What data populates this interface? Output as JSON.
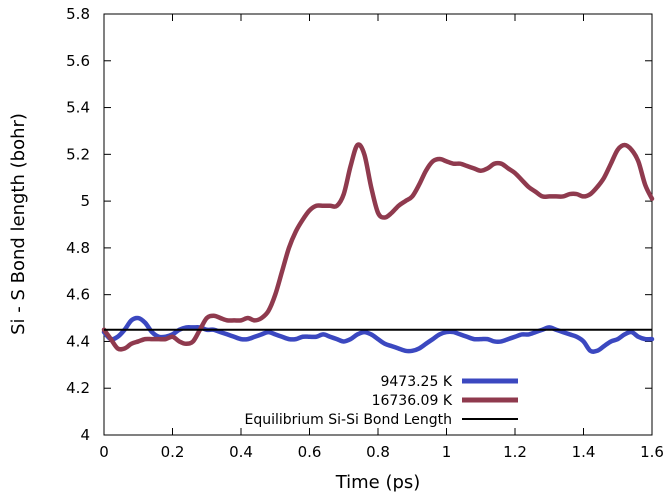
{
  "chart_data": {
    "type": "line",
    "xlabel": "Time (ps)",
    "ylabel": "Si - S Bond length (bohr)",
    "xlim": [
      0,
      1.6
    ],
    "ylim": [
      4,
      5.8
    ],
    "xticks": [
      "0",
      "0.2",
      "0.4",
      "0.6",
      "0.8",
      "1",
      "1.2",
      "1.4",
      "1.6"
    ],
    "yticks": [
      "4",
      "4.2",
      "4.4",
      "4.6",
      "4.8",
      "5",
      "5.2",
      "5.4",
      "5.6",
      "5.8"
    ],
    "grid": false,
    "legend_position": "bottom-right",
    "series": [
      {
        "name": "9473.25 K",
        "color": "#3b48c0",
        "x": [
          0,
          0.02,
          0.04,
          0.06,
          0.08,
          0.1,
          0.12,
          0.14,
          0.16,
          0.18,
          0.2,
          0.22,
          0.24,
          0.26,
          0.28,
          0.3,
          0.32,
          0.34,
          0.36,
          0.38,
          0.4,
          0.42,
          0.44,
          0.46,
          0.48,
          0.5,
          0.52,
          0.54,
          0.56,
          0.58,
          0.6,
          0.62,
          0.64,
          0.66,
          0.68,
          0.7,
          0.72,
          0.74,
          0.76,
          0.78,
          0.8,
          0.82,
          0.84,
          0.86,
          0.88,
          0.9,
          0.92,
          0.94,
          0.96,
          0.98,
          1.0,
          1.02,
          1.04,
          1.06,
          1.08,
          1.1,
          1.12,
          1.14,
          1.16,
          1.18,
          1.2,
          1.22,
          1.24,
          1.26,
          1.28,
          1.3,
          1.32,
          1.34,
          1.36,
          1.38,
          1.4,
          1.42,
          1.44,
          1.46,
          1.48,
          1.5,
          1.52,
          1.54,
          1.56,
          1.58,
          1.6
        ],
        "values": [
          4.44,
          4.41,
          4.42,
          4.45,
          4.49,
          4.5,
          4.48,
          4.44,
          4.42,
          4.42,
          4.43,
          4.45,
          4.46,
          4.46,
          4.46,
          4.45,
          4.45,
          4.44,
          4.43,
          4.42,
          4.41,
          4.41,
          4.42,
          4.43,
          4.44,
          4.43,
          4.42,
          4.41,
          4.41,
          4.42,
          4.42,
          4.42,
          4.43,
          4.42,
          4.41,
          4.4,
          4.41,
          4.43,
          4.44,
          4.43,
          4.41,
          4.39,
          4.38,
          4.37,
          4.36,
          4.36,
          4.37,
          4.39,
          4.41,
          4.43,
          4.44,
          4.44,
          4.43,
          4.42,
          4.41,
          4.41,
          4.41,
          4.4,
          4.4,
          4.41,
          4.42,
          4.43,
          4.43,
          4.44,
          4.45,
          4.46,
          4.45,
          4.44,
          4.43,
          4.42,
          4.4,
          4.36,
          4.36,
          4.38,
          4.4,
          4.41,
          4.43,
          4.44,
          4.42,
          4.41,
          4.41
        ]
      },
      {
        "name": "16736.09 K",
        "color": "#8f3a4e",
        "x": [
          0,
          0.02,
          0.04,
          0.06,
          0.08,
          0.1,
          0.12,
          0.14,
          0.16,
          0.18,
          0.2,
          0.22,
          0.24,
          0.26,
          0.28,
          0.3,
          0.32,
          0.34,
          0.36,
          0.38,
          0.4,
          0.42,
          0.44,
          0.46,
          0.48,
          0.5,
          0.52,
          0.54,
          0.56,
          0.58,
          0.6,
          0.62,
          0.64,
          0.66,
          0.68,
          0.7,
          0.72,
          0.74,
          0.76,
          0.78,
          0.8,
          0.82,
          0.84,
          0.86,
          0.88,
          0.9,
          0.92,
          0.94,
          0.96,
          0.98,
          1.0,
          1.02,
          1.04,
          1.06,
          1.08,
          1.1,
          1.12,
          1.14,
          1.16,
          1.18,
          1.2,
          1.22,
          1.24,
          1.26,
          1.28,
          1.3,
          1.32,
          1.34,
          1.36,
          1.38,
          1.4,
          1.42,
          1.44,
          1.46,
          1.48,
          1.5,
          1.52,
          1.54,
          1.56,
          1.58,
          1.6
        ],
        "values": [
          4.45,
          4.41,
          4.37,
          4.37,
          4.39,
          4.4,
          4.41,
          4.41,
          4.41,
          4.41,
          4.42,
          4.4,
          4.39,
          4.4,
          4.45,
          4.5,
          4.51,
          4.5,
          4.49,
          4.49,
          4.49,
          4.5,
          4.49,
          4.5,
          4.53,
          4.6,
          4.7,
          4.8,
          4.87,
          4.92,
          4.96,
          4.98,
          4.98,
          4.98,
          4.98,
          5.03,
          5.15,
          5.24,
          5.2,
          5.06,
          4.95,
          4.93,
          4.95,
          4.98,
          5.0,
          5.02,
          5.07,
          5.13,
          5.17,
          5.18,
          5.17,
          5.16,
          5.16,
          5.15,
          5.14,
          5.13,
          5.14,
          5.16,
          5.16,
          5.14,
          5.12,
          5.09,
          5.06,
          5.04,
          5.02,
          5.02,
          5.02,
          5.02,
          5.03,
          5.03,
          5.02,
          5.03,
          5.06,
          5.1,
          5.16,
          5.22,
          5.24,
          5.22,
          5.17,
          5.07,
          5.01
        ]
      }
    ],
    "reference_lines": [
      {
        "name": "Equilibrium Si-Si Bond Length",
        "y": 4.45,
        "color": "#000000"
      }
    ]
  }
}
